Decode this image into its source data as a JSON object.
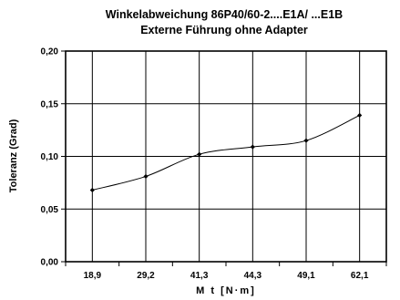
{
  "chart_data": {
    "type": "line",
    "title": "Winkelabweichung 86P40/60-2....E1A/ ...E1B",
    "subtitle": "Externe Führung ohne Adapter",
    "xlabel": "M t  [N·m]",
    "ylabel": "Toleranz (Grad)",
    "categories": [
      "18,9",
      "29,2",
      "41,3",
      "44,3",
      "49,1",
      "62,1"
    ],
    "series": [
      {
        "values": [
          0.068,
          0.081,
          0.102,
          0.109,
          0.115,
          0.139
        ]
      }
    ],
    "ylim": [
      0,
      0.2
    ],
    "yticks": [
      0,
      0.05,
      0.1,
      0.15,
      0.2
    ],
    "ytick_labels": [
      "0,00",
      "0,05",
      "0,10",
      "0,15",
      "0,20"
    ],
    "grid": true,
    "colors": {
      "line": "#000000",
      "grid": "#000000"
    }
  }
}
